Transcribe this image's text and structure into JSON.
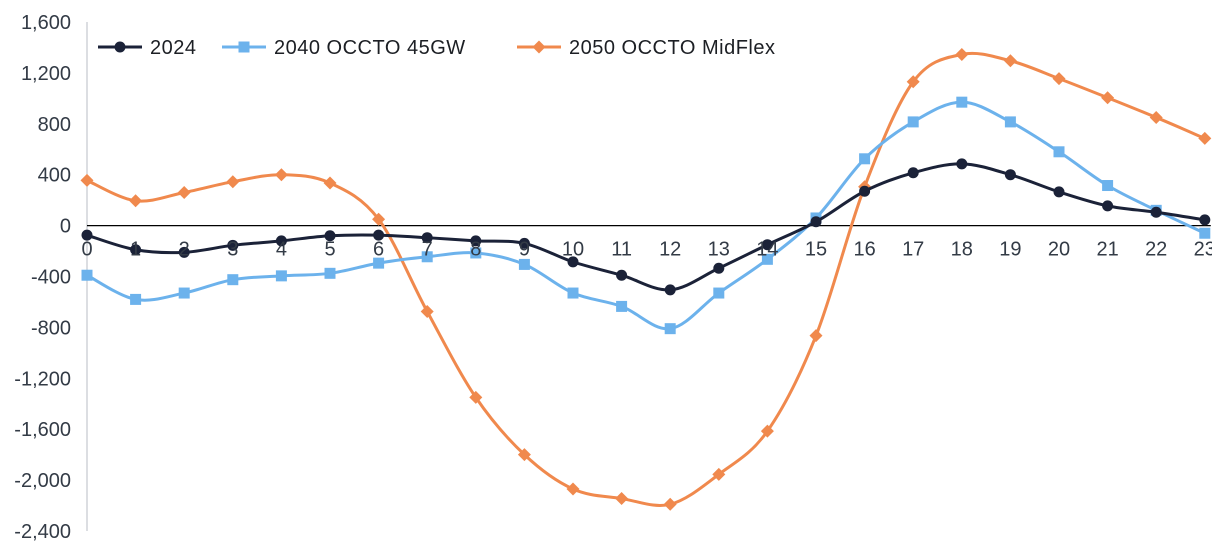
{
  "chart_data": {
    "type": "line",
    "title": "",
    "xlabel": "",
    "ylabel": "",
    "x": [
      0,
      1,
      2,
      3,
      4,
      5,
      6,
      7,
      8,
      9,
      10,
      11,
      12,
      13,
      14,
      15,
      16,
      17,
      18,
      19,
      20,
      21,
      22,
      23
    ],
    "x_tick_labels": [
      "0",
      "1",
      "2",
      "3",
      "4",
      "5",
      "6",
      "7",
      "8",
      "9",
      "10",
      "11",
      "12",
      "13",
      "14",
      "15",
      "16",
      "17",
      "18",
      "19",
      "20",
      "21",
      "22",
      "23"
    ],
    "ylim": [
      -2400,
      1600
    ],
    "y_ticks": [
      1600,
      1200,
      800,
      400,
      0,
      -400,
      -800,
      -1200,
      -1600,
      -2000,
      -2400
    ],
    "y_tick_labels": [
      "1,600",
      "1,200",
      "800",
      "400",
      "0",
      "-400",
      "-800",
      "-1,200",
      "-1,600",
      "-2,000",
      "-2,400"
    ],
    "grid": false,
    "legend_position": "top-left",
    "series": [
      {
        "name": "2024",
        "color": "#1b2238",
        "marker": "circle",
        "values": [
          -75,
          -190,
          -210,
          -155,
          -120,
          -80,
          -75,
          -95,
          -120,
          -140,
          -285,
          -390,
          -505,
          -335,
          -150,
          30,
          270,
          415,
          485,
          400,
          265,
          155,
          105,
          45
        ]
      },
      {
        "name": "2040 OCCTO 45GW",
        "color": "#6cb2ec",
        "marker": "square",
        "values": [
          -390,
          -580,
          -530,
          -425,
          -395,
          -375,
          -295,
          -245,
          -215,
          -305,
          -530,
          -635,
          -810,
          -530,
          -265,
          60,
          525,
          815,
          970,
          815,
          580,
          315,
          120,
          -60
        ]
      },
      {
        "name": "2050 OCCTO MidFlex",
        "color": "#f0894d",
        "marker": "diamond",
        "values": [
          355,
          195,
          260,
          345,
          400,
          335,
          50,
          -675,
          -1350,
          -1800,
          -2070,
          -2145,
          -2190,
          -1955,
          -1615,
          -865,
          305,
          1130,
          1345,
          1295,
          1155,
          1005,
          850,
          685
        ]
      }
    ]
  }
}
